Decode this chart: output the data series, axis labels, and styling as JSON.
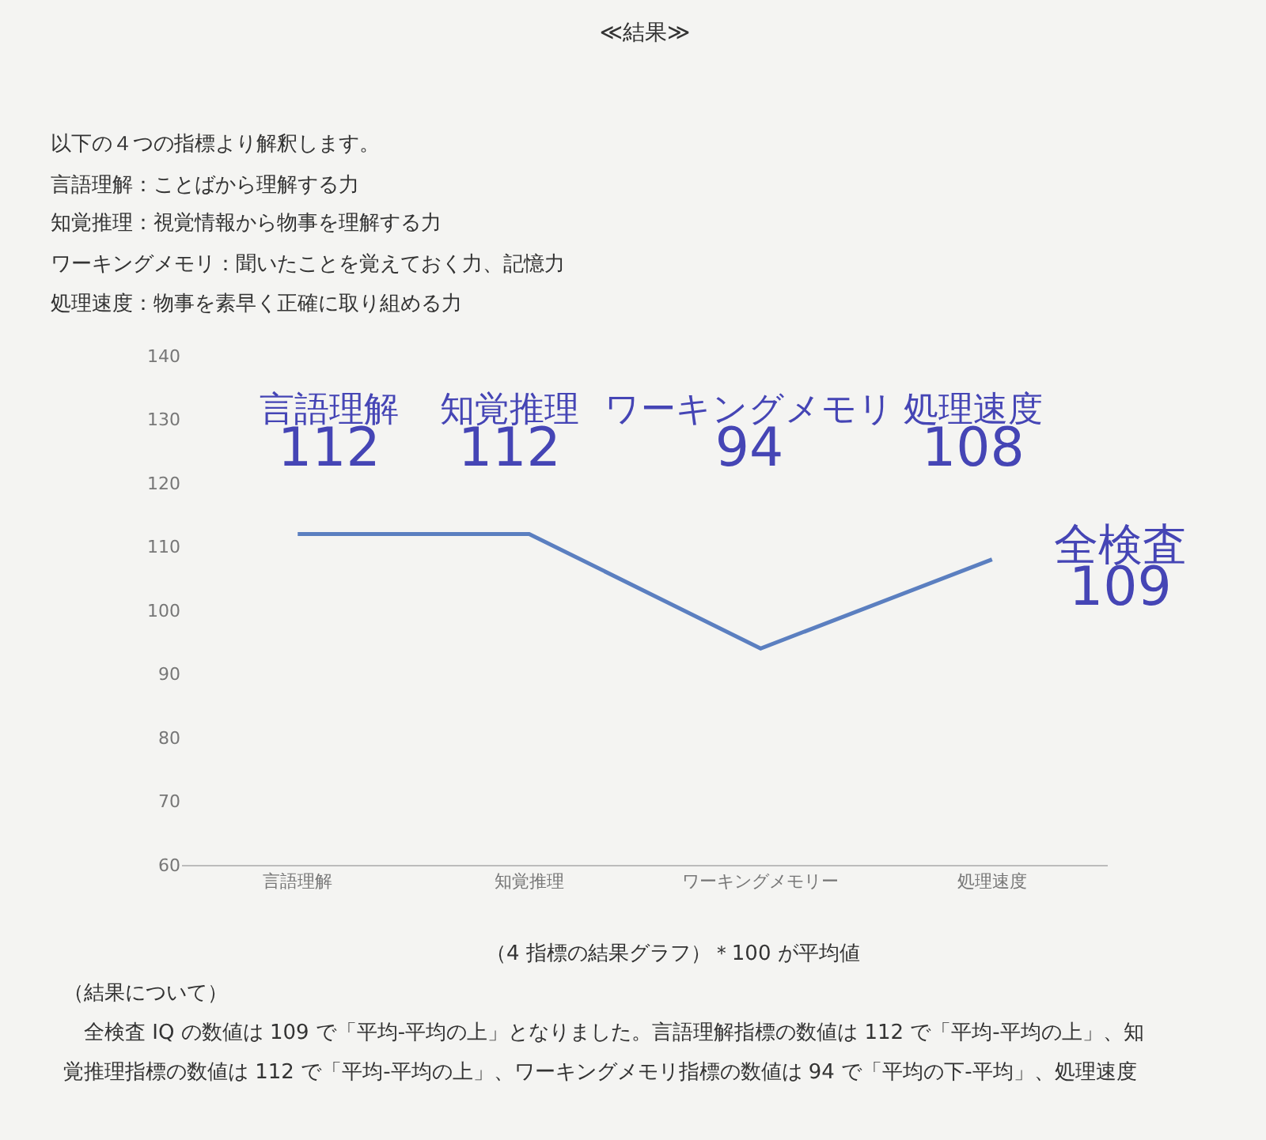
{
  "chart_data": {
    "type": "line",
    "title": "≪結果≫",
    "categories": [
      "言語理解",
      "知覚推理",
      "ワーキングメモリー",
      "処理速度"
    ],
    "series": [
      {
        "color": "#5b7fc0",
        "values": [
          112,
          112,
          94,
          108
        ]
      }
    ],
    "ylim": [
      60,
      140
    ],
    "yticks": [
      60,
      70,
      80,
      90,
      100,
      110,
      120,
      130,
      140
    ],
    "grid": false,
    "marker": "none",
    "line_style": "solid",
    "annotations": [
      "以下の４つの指標より解釈します。",
      "言語理解：ことばから理解する力",
      "知覚推理：視覚情報から物事を理解する力",
      "ワーキングメモリ：聞いたことを覚えておく力、記憶力",
      "処理速度：物事を素早く正確に取り組める力",
      "言語理解\n112",
      "知覚推理\n112",
      "ワーキングメモリ\n94",
      "処理速度\n108",
      "全検査\n109",
      "（4 指標の結果グラフ）＊100 が平均値",
      "（結果について）",
      "　全検査 IQ の数値は 109 で「平均-平均の上」となりました。言語理解指標の数値は 112 で「平均-平均の上」、知",
      "覚推理指標の数値は 112 で「平均-平均の上」、ワーキングメモリ指標の数値は 94 で「平均の下-平均」、処理速度"
    ]
  }
}
